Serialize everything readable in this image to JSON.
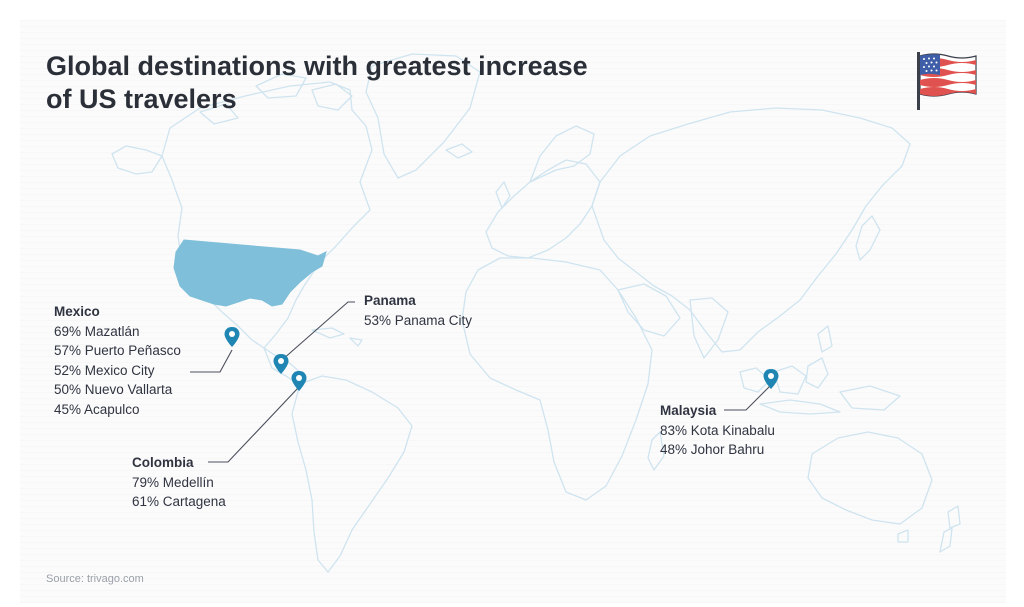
{
  "title_line1": "Global destinations with greatest increase",
  "title_line2": "of US travelers",
  "source": "Source: trivago.com",
  "flag_icon": "us-flag-icon",
  "colors": {
    "highlight_country": "#7fbfd9",
    "coastline": "#cfe4ef",
    "pin": "#1f86b3",
    "title": "#2b2f38"
  },
  "callouts": {
    "mexico": {
      "country": "Mexico",
      "items": [
        "69% Mazatlán",
        "57% Puerto Peñasco",
        "52% Mexico City",
        "50% Nuevo Vallarta",
        "45% Acapulco"
      ]
    },
    "panama": {
      "country": "Panama",
      "items": [
        "53% Panama City"
      ]
    },
    "colombia": {
      "country": "Colombia",
      "items": [
        "79% Medellín",
        "61% Cartagena"
      ]
    },
    "malaysia": {
      "country": "Malaysia",
      "items": [
        "83% Kota Kinabalu",
        "48% Johor Bahru"
      ]
    }
  }
}
